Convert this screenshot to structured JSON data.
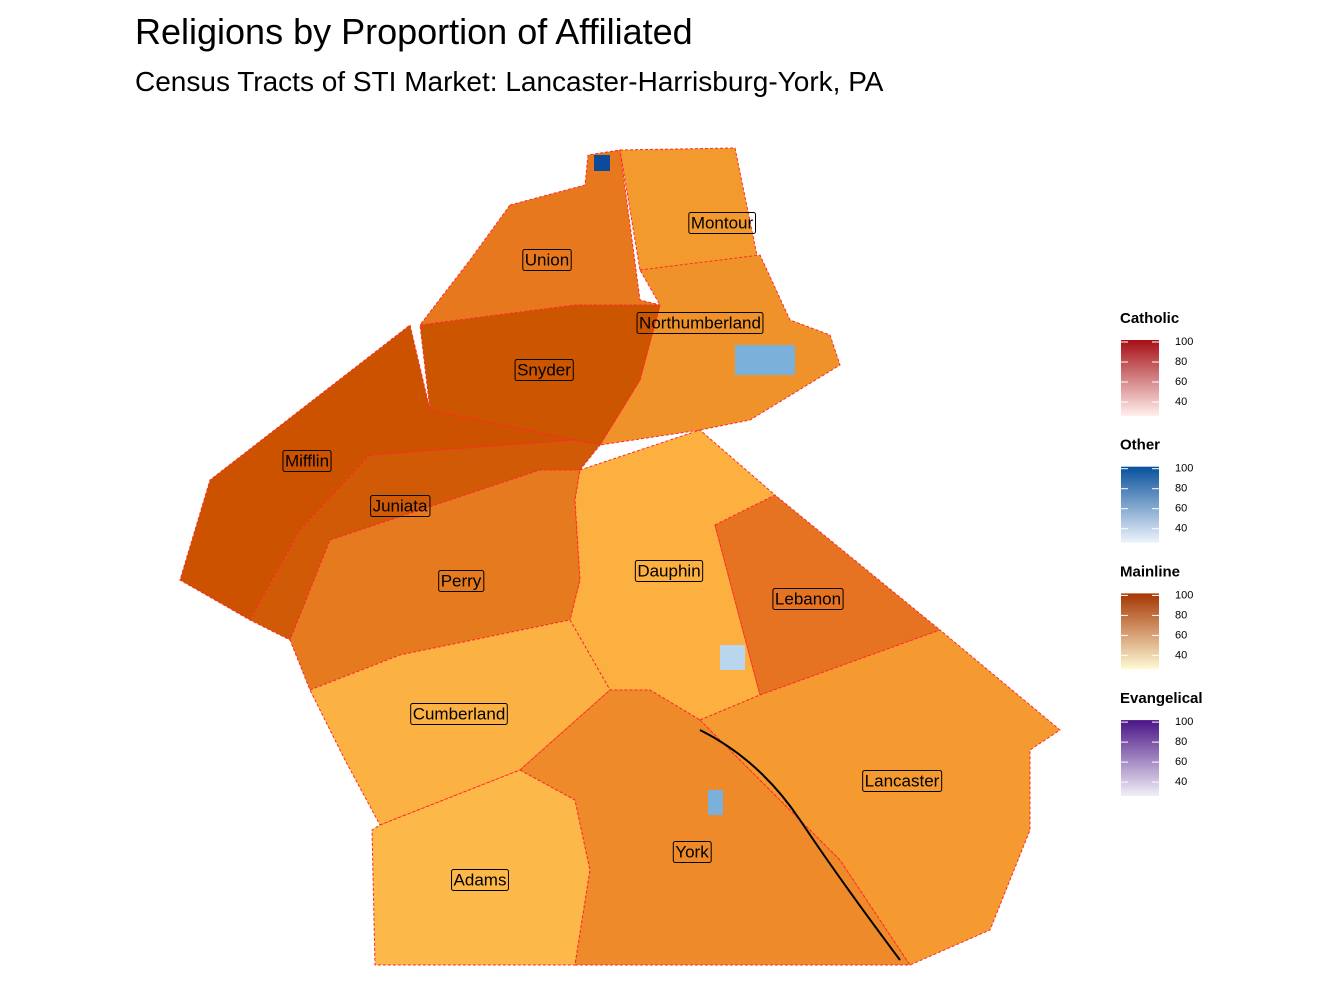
{
  "header": {
    "title": "Religions by Proportion of Affiliated",
    "subtitle": "Census Tracts of STI Market: Lancaster-Harrisburg-York, PA"
  },
  "map": {
    "labels": [
      "Montour",
      "Union",
      "Northumberland",
      "Snyder",
      "Mifflin",
      "Juniata",
      "Perry",
      "Dauphin",
      "Lebanon",
      "Cumberland",
      "Lancaster",
      "York",
      "Adams"
    ]
  },
  "legend": [
    {
      "title": "Catholic",
      "ticks": [
        100,
        80,
        60,
        40
      ],
      "colors": [
        "#a50f15",
        "#fff0ee"
      ]
    },
    {
      "title": "Other",
      "ticks": [
        100,
        80,
        60,
        40
      ],
      "colors": [
        "#08519c",
        "#eef4fb"
      ]
    },
    {
      "title": "Mainline",
      "ticks": [
        100,
        80,
        60,
        40
      ],
      "colors": [
        "#a63603",
        "#fffbd6"
      ]
    },
    {
      "title": "Evangelical",
      "ticks": [
        100,
        80,
        60,
        40
      ],
      "colors": [
        "#4a1486",
        "#f2f0f7"
      ]
    }
  ]
}
